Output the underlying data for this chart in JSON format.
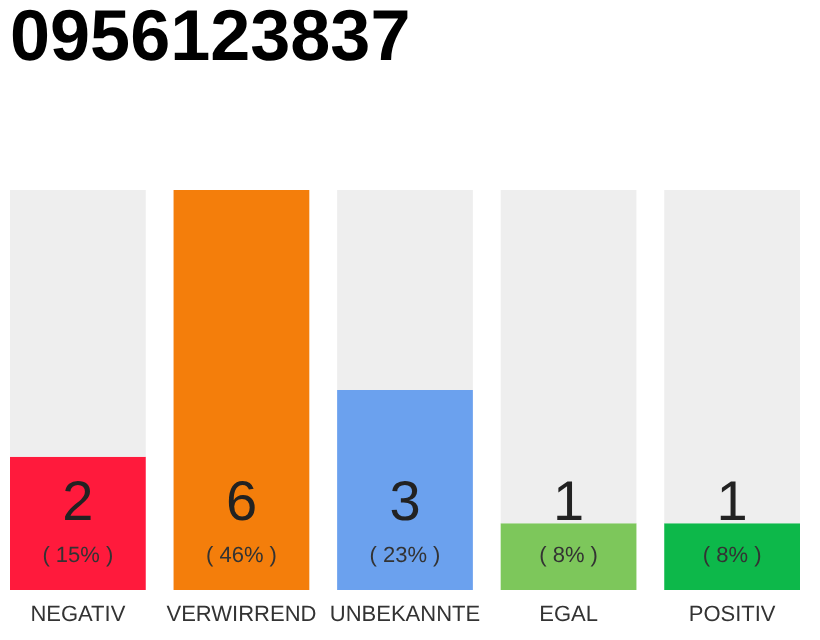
{
  "chart_data": {
    "type": "bar",
    "title": "0956123837",
    "categories": [
      "NEGATIV",
      "VERWIRREND",
      "UNBEKANNTE",
      "EGAL",
      "POSITIV"
    ],
    "stacked": true,
    "series": [
      {
        "values": [
          2,
          6,
          3,
          1,
          1
        ],
        "colors": [
          "#ff1a3c",
          "#f47e0b",
          "#6ba1ee",
          "#7dc75b",
          "#0db84a"
        ],
        "value_labels": [
          "2",
          "6",
          "3",
          "1",
          "1"
        ]
      },
      {
        "values": [
          4,
          0,
          3,
          5,
          5
        ],
        "color": "#eeeeee"
      }
    ],
    "annotations": [
      "( 15% )",
      "( 46% )",
      "( 23% )",
      "( 8% )",
      "( 8% )"
    ]
  }
}
